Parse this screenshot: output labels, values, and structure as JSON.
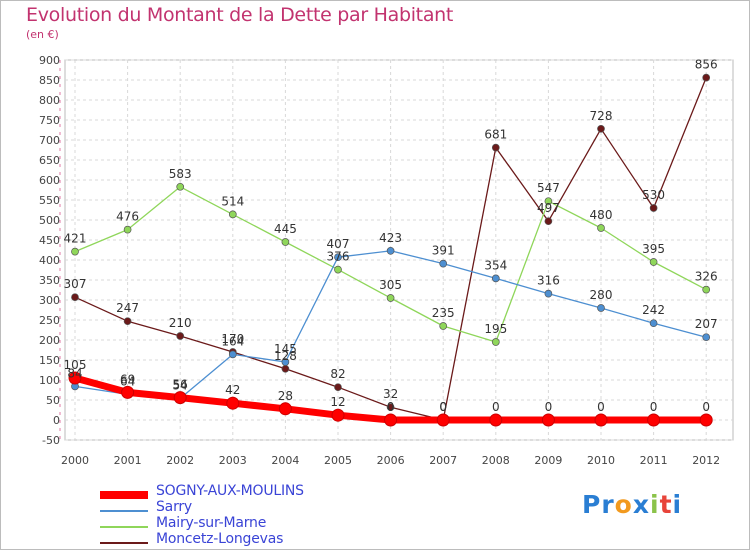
{
  "header": {
    "title": "Evolution du Montant de la Dette par Habitant",
    "subtitle": "(en €)"
  },
  "logo": {
    "text": "Proxiti",
    "letters": [
      {
        "ch": "P",
        "color": "#2a7ed3"
      },
      {
        "ch": "r",
        "color": "#2a7ed3"
      },
      {
        "ch": "o",
        "color": "#f29a1f"
      },
      {
        "ch": "x",
        "color": "#2a7ed3"
      },
      {
        "ch": "i",
        "color": "#8bc34a"
      },
      {
        "ch": "t",
        "color": "#e8443a"
      },
      {
        "ch": "i",
        "color": "#2a7ed3"
      }
    ]
  },
  "chart_data": {
    "type": "line",
    "title": "Evolution du Montant de la Dette par Habitant",
    "subtitle": "(en €)",
    "x": [
      "2000",
      "2001",
      "2002",
      "2003",
      "2004",
      "2005",
      "2006",
      "2007",
      "2008",
      "2009",
      "2010",
      "2011",
      "2012"
    ],
    "ylim": [
      -50,
      900
    ],
    "yticks": [
      -50,
      0,
      50,
      100,
      150,
      200,
      250,
      300,
      350,
      400,
      450,
      500,
      550,
      600,
      650,
      700,
      750,
      800,
      850,
      900
    ],
    "grid": true,
    "legend_position": "bottom-left",
    "series": [
      {
        "name": "SOGNY-AUX-MOULINS",
        "color": "#ff0000",
        "values": [
          105,
          69,
          56,
          42,
          28,
          12,
          0,
          0,
          0,
          0,
          0,
          0,
          0
        ],
        "labels": [
          "105",
          "69",
          "56",
          "42",
          "28",
          "12",
          "0",
          "0",
          "0",
          "0",
          "0",
          "0",
          "0"
        ]
      },
      {
        "name": "Sarry",
        "color": "#4d8fd1",
        "values": [
          84,
          64,
          54,
          164,
          145,
          407,
          423,
          391,
          354,
          316,
          280,
          242,
          207
        ],
        "labels": [
          "84",
          "64",
          "54",
          "164",
          "145",
          "407",
          "423",
          "391",
          "354",
          "316",
          "280",
          "242",
          "207"
        ]
      },
      {
        "name": "Mairy-sur-Marne",
        "color": "#8fd65a",
        "values": [
          421,
          476,
          583,
          514,
          445,
          376,
          305,
          235,
          195,
          547,
          480,
          395,
          326
        ],
        "labels": [
          "421",
          "476",
          "583",
          "514",
          "445",
          "376",
          "305",
          "235",
          "195",
          "547",
          "480",
          "395",
          "326"
        ]
      },
      {
        "name": "Moncetz-Longevas",
        "color": "#6b1a1a",
        "values": [
          307,
          247,
          210,
          170,
          128,
          82,
          32,
          0,
          681,
          497,
          728,
          530,
          856
        ],
        "labels": [
          "307",
          "247",
          "210",
          "170",
          "128",
          "82",
          "32",
          "0",
          "681",
          "497",
          "728",
          "530",
          "856"
        ]
      }
    ]
  }
}
